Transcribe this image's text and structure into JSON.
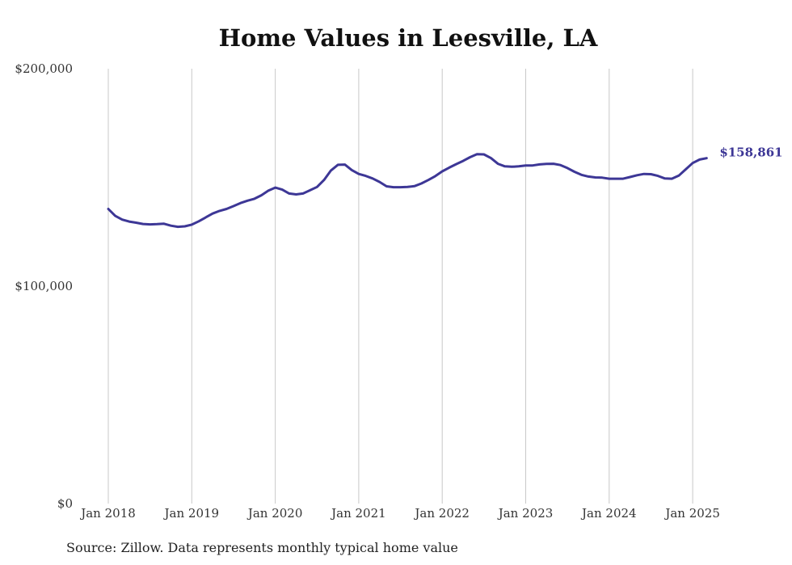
{
  "chart_data": {
    "type": "line",
    "title": "Home Values in Leesville, LA",
    "source": "Source: Zillow. Data represents monthly typical home value",
    "xlabel": "",
    "ylabel": "",
    "ylim": [
      0,
      200000
    ],
    "y_ticks": [
      {
        "value": 0,
        "label": "$0"
      },
      {
        "value": 100000,
        "label": "$100,000"
      },
      {
        "value": 200000,
        "label": "$200,000"
      }
    ],
    "x_ticks": [
      {
        "value": "2018-01",
        "label": "Jan 2018"
      },
      {
        "value": "2019-01",
        "label": "Jan 2019"
      },
      {
        "value": "2020-01",
        "label": "Jan 2020"
      },
      {
        "value": "2021-01",
        "label": "Jan 2021"
      },
      {
        "value": "2022-01",
        "label": "Jan 2022"
      },
      {
        "value": "2023-01",
        "label": "Jan 2023"
      },
      {
        "value": "2024-01",
        "label": "Jan 2024"
      },
      {
        "value": "2025-01",
        "label": "Jan 2025"
      }
    ],
    "grid": "vertical",
    "line_color": "#3d3796",
    "end_label": "$158,861",
    "series": [
      {
        "x": [
          "2018-01",
          "2018-02",
          "2018-03",
          "2018-04",
          "2018-05",
          "2018-06",
          "2018-07",
          "2018-08",
          "2018-09",
          "2018-10",
          "2018-11",
          "2018-12",
          "2019-01",
          "2019-02",
          "2019-03",
          "2019-04",
          "2019-05",
          "2019-06",
          "2019-07",
          "2019-08",
          "2019-09",
          "2019-10",
          "2019-11",
          "2019-12",
          "2020-01",
          "2020-02",
          "2020-03",
          "2020-04",
          "2020-05",
          "2020-06",
          "2020-07",
          "2020-08",
          "2020-09",
          "2020-10",
          "2020-11",
          "2020-12",
          "2021-01",
          "2021-02",
          "2021-03",
          "2021-04",
          "2021-05",
          "2021-06",
          "2021-07",
          "2021-08",
          "2021-09",
          "2021-10",
          "2021-11",
          "2021-12",
          "2022-01",
          "2022-02",
          "2022-03",
          "2022-04",
          "2022-05",
          "2022-06",
          "2022-07",
          "2022-08",
          "2022-09",
          "2022-10",
          "2022-11",
          "2022-12",
          "2023-01",
          "2023-02",
          "2023-03",
          "2023-04",
          "2023-05",
          "2023-06",
          "2023-07",
          "2023-08",
          "2023-09",
          "2023-10",
          "2023-11",
          "2023-12",
          "2024-01",
          "2024-02",
          "2024-03",
          "2024-04",
          "2024-05",
          "2024-06",
          "2024-07",
          "2024-08",
          "2024-09",
          "2024-10",
          "2024-11",
          "2024-12",
          "2025-01",
          "2025-02",
          "2025-03"
        ],
        "values": [
          135500,
          132300,
          130600,
          129700,
          129200,
          128600,
          128400,
          128500,
          128700,
          127800,
          127300,
          127500,
          128300,
          129800,
          131600,
          133400,
          134600,
          135500,
          136800,
          138200,
          139300,
          140200,
          141800,
          143900,
          145300,
          144400,
          142600,
          142200,
          142600,
          144100,
          145600,
          148800,
          153200,
          155800,
          155900,
          153400,
          151600,
          150700,
          149500,
          147900,
          145900,
          145500,
          145500,
          145600,
          146000,
          147200,
          148800,
          150600,
          152800,
          154500,
          156100,
          157600,
          159300,
          160700,
          160600,
          158900,
          156300,
          155100,
          154900,
          155100,
          155500,
          155500,
          156000,
          156200,
          156300,
          155700,
          154300,
          152600,
          151200,
          150400,
          150000,
          149900,
          149400,
          149400,
          149400,
          150200,
          151000,
          151600,
          151500,
          150700,
          149500,
          149400,
          150800,
          153700,
          156600,
          158200,
          158861
        ]
      }
    ]
  }
}
